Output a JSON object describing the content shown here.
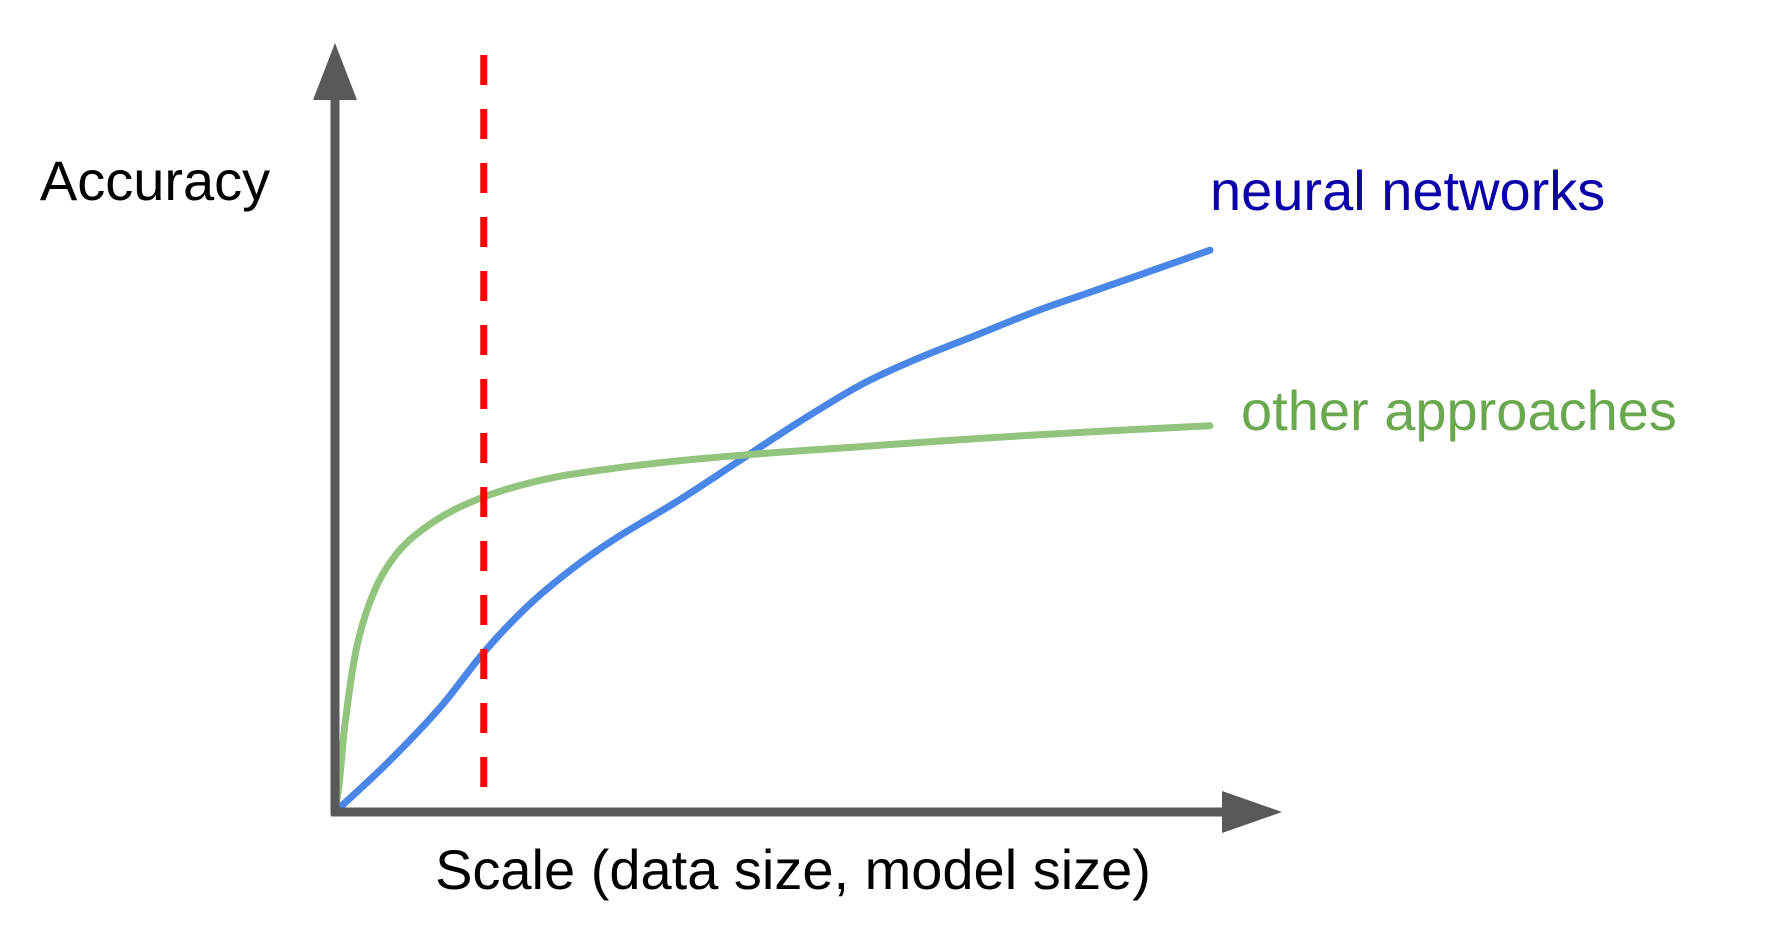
{
  "colors": {
    "axis": "#595959",
    "neural_line": "#4a86e8",
    "neural_label": "#0b00a8",
    "other_line": "#93c47d",
    "other_label": "#6aa84f",
    "threshold": "#ff0000"
  },
  "chart_data": {
    "type": "line",
    "title": "",
    "xlabel": "Scale (data size, model size)",
    "ylabel": "Accuracy",
    "xlim": [
      0,
      100
    ],
    "ylim": [
      0,
      100
    ],
    "grid": false,
    "legend": "inline labels at right end of each line",
    "series": [
      {
        "name": "neural networks",
        "x": [
          0,
          6,
          12,
          17,
          22,
          27,
          32,
          39,
          46,
          53,
          60,
          66,
          73,
          80,
          86,
          92,
          100
        ],
        "y": [
          0,
          8,
          17,
          26,
          33.5,
          39.5,
          44.5,
          50.5,
          57,
          63.5,
          69.5,
          73.5,
          77.5,
          81.5,
          84.5,
          87.5,
          91.5
        ]
      },
      {
        "name": "other approaches",
        "x": [
          0,
          0.5,
          1.2,
          2.5,
          4.5,
          7,
          10,
          14,
          19,
          25,
          32,
          40,
          50,
          60,
          70,
          80,
          90,
          100
        ],
        "y": [
          0,
          5,
          15,
          27,
          36,
          42,
          46,
          49.5,
          52.3,
          54.5,
          56,
          57.3,
          58.5,
          59.5,
          60.5,
          61.4,
          62.2,
          62.9
        ]
      }
    ],
    "annotations": [
      {
        "type": "vline",
        "x": 17,
        "style": "dashed"
      }
    ]
  }
}
